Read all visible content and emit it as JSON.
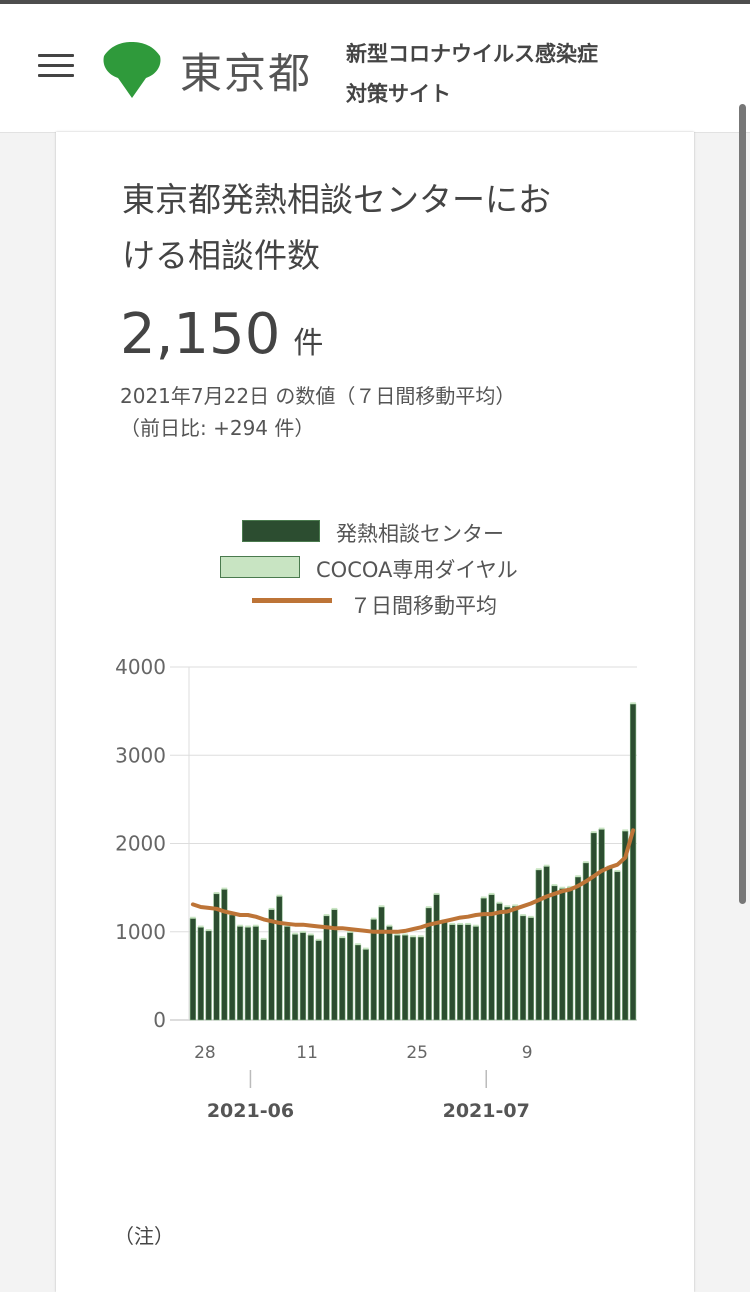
{
  "header": {
    "logo_text": "東京都",
    "site_title_line1": "新型コロナウイルス感染症",
    "site_title_line2": "対策サイト"
  },
  "card": {
    "title_line1": "東京都発熱相談センターにお",
    "title_line2": "ける相談件数",
    "value": "2,150",
    "unit": "件",
    "date_note": "2021年7月22日 の数値（７日間移動平均）",
    "diff_note": "（前日比: +294 件）",
    "footnote": "（注）"
  },
  "legend": [
    {
      "label": "発熱相談センター",
      "color": "#2c4d30"
    },
    {
      "label": "COCOA専用ダイヤル",
      "color": "#c8e4c2"
    },
    {
      "label": "７日間移動平均",
      "color": "#bd7437"
    }
  ],
  "chart_data": {
    "type": "bar",
    "y_ticks": [
      "4000",
      "3000",
      "2000",
      "1000",
      "0"
    ],
    "ylim": [
      0,
      4000
    ],
    "x_tick_labels": [
      "28",
      "11",
      "25",
      "9"
    ],
    "x_tick_days": [
      0,
      13,
      27,
      41
    ],
    "month_labels": [
      "2021-06",
      "2021-07"
    ],
    "month_label_days": [
      4,
      34
    ],
    "categories_start": "2021-06-27",
    "categories_end": "2021-07-22",
    "series": [
      {
        "name": "発熱相談センター",
        "values": [
          1150,
          1050,
          1010,
          1430,
          1480,
          1190,
          1060,
          1050,
          1060,
          910,
          1250,
          1400,
          1060,
          970,
          990,
          960,
          900,
          1180,
          1250,
          930,
          990,
          850,
          800,
          1140,
          1280,
          1060,
          960,
          960,
          940,
          940,
          1270,
          1420,
          1120,
          1080,
          1080,
          1080,
          1060,
          1380,
          1420,
          1320,
          1280,
          1290,
          1180,
          1160,
          1700,
          1740,
          1520,
          1490,
          1500,
          1620,
          1780,
          2120,
          2160,
          1730,
          1680,
          2140,
          3580
        ]
      },
      {
        "name": "COCOA専用ダイヤル",
        "values": [
          20,
          20,
          20,
          20,
          20,
          20,
          20,
          20,
          20,
          20,
          20,
          20,
          20,
          20,
          20,
          20,
          20,
          20,
          20,
          20,
          20,
          20,
          20,
          20,
          20,
          20,
          20,
          20,
          20,
          20,
          20,
          20,
          20,
          20,
          20,
          20,
          20,
          20,
          20,
          20,
          20,
          20,
          20,
          20,
          20,
          20,
          20,
          20,
          20,
          20,
          20,
          20,
          20,
          20,
          20,
          20,
          20
        ]
      },
      {
        "name": "７日間移動平均",
        "values": [
          1310,
          1280,
          1270,
          1260,
          1230,
          1210,
          1190,
          1190,
          1170,
          1140,
          1120,
          1100,
          1090,
          1080,
          1080,
          1070,
          1060,
          1050,
          1040,
          1040,
          1030,
          1020,
          1010,
          1000,
          1000,
          1000,
          1000,
          1010,
          1030,
          1050,
          1080,
          1100,
          1120,
          1140,
          1160,
          1170,
          1190,
          1200,
          1200,
          1220,
          1230,
          1260,
          1290,
          1320,
          1360,
          1400,
          1430,
          1460,
          1480,
          1520,
          1570,
          1630,
          1690,
          1730,
          1760,
          1840,
          2150
        ]
      }
    ]
  }
}
